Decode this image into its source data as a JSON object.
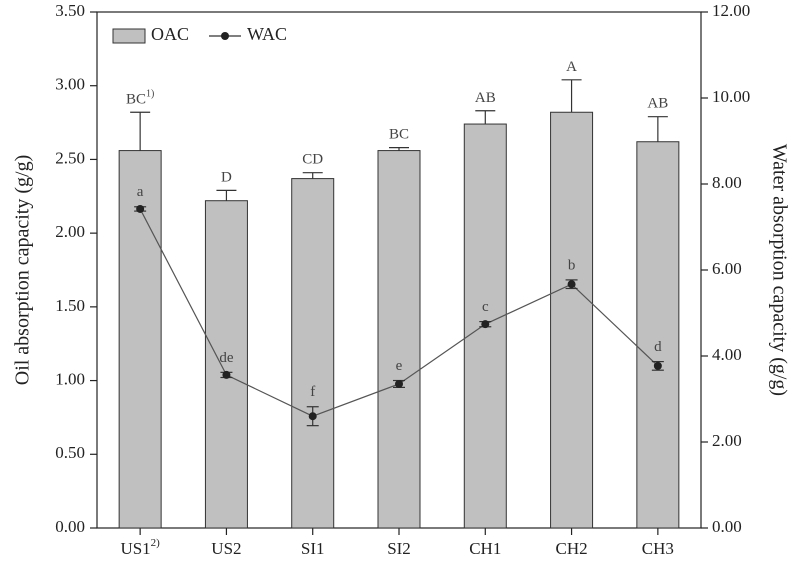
{
  "chart_data": {
    "type": "bar",
    "categories": [
      "US1",
      "US2",
      "SI1",
      "SI2",
      "CH1",
      "CH2",
      "CH3"
    ],
    "footnote_marks": {
      "letter": "1)",
      "category": "2)"
    },
    "ylabel": "Oil absorption capacity (g/g)",
    "y2label": "Water absorption capacity (g/g)",
    "ylim": [
      0,
      3.5
    ],
    "yticks": [
      {
        "value": 0,
        "label": "0.00"
      },
      {
        "value": 0.5,
        "label": "0.50"
      },
      {
        "value": 1,
        "label": "1.00"
      },
      {
        "value": 1.5,
        "label": "1.50"
      },
      {
        "value": 2,
        "label": "2.00"
      },
      {
        "value": 2.5,
        "label": "2.50"
      },
      {
        "value": 3,
        "label": "3.00"
      },
      {
        "value": 3.5,
        "label": "3.50"
      }
    ],
    "y2lim": [
      0,
      12
    ],
    "y2ticks": [
      {
        "value": 0,
        "label": "0.00"
      },
      {
        "value": 2,
        "label": "2.00"
      },
      {
        "value": 4,
        "label": "4.00"
      },
      {
        "value": 6,
        "label": "6.00"
      },
      {
        "value": 8,
        "label": "8.00"
      },
      {
        "value": 10,
        "label": "10.00"
      },
      {
        "value": 12,
        "label": "12.00"
      }
    ],
    "legend": "upper left",
    "series": [
      {
        "name": "OAC",
        "type": "bar",
        "color": "#c0c0c0",
        "values": [
          2.56,
          2.22,
          2.37,
          2.56,
          2.74,
          2.82,
          2.62
        ],
        "errors": [
          0.26,
          0.07,
          0.04,
          0.02,
          0.09,
          0.22,
          0.17
        ],
        "letters": [
          "BC",
          "D",
          "CD",
          "BC",
          "AB",
          "A",
          "AB"
        ]
      },
      {
        "name": "WAC",
        "type": "line",
        "axis": "y2",
        "color": "#222222",
        "values": [
          7.42,
          3.56,
          2.6,
          3.35,
          4.74,
          5.67,
          3.77
        ],
        "errors": [
          0.05,
          0.06,
          0.22,
          0.08,
          0.06,
          0.1,
          0.1
        ],
        "letters": [
          "a",
          "de",
          "f",
          "e",
          "c",
          "b",
          "d"
        ]
      }
    ]
  }
}
